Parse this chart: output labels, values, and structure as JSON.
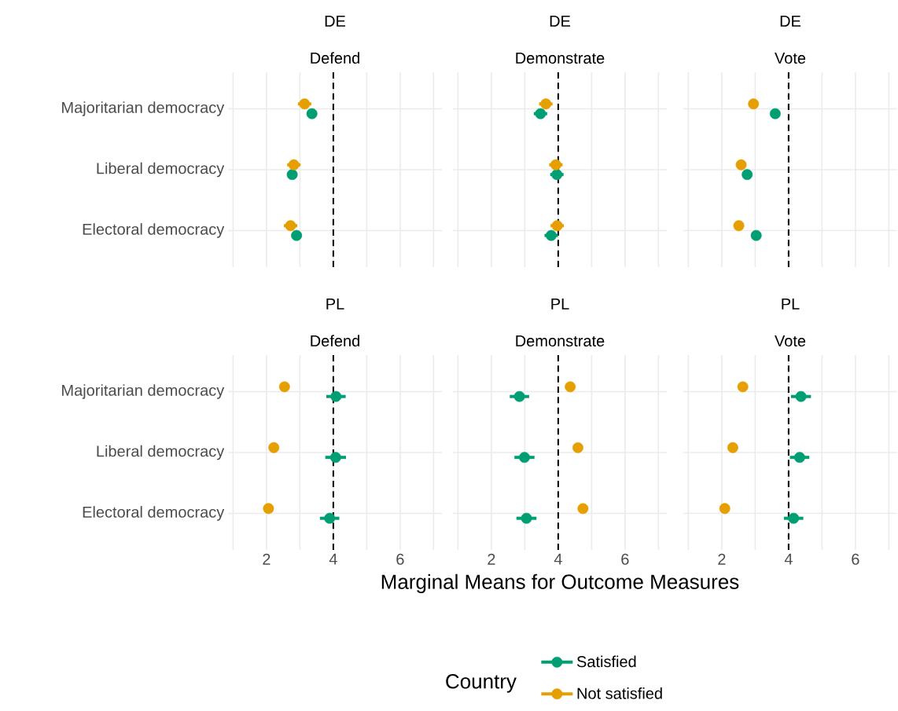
{
  "chart_data": [
    {
      "type": "scatter",
      "orientation": "horizontal",
      "title": "DE",
      "subtitle": "Defend",
      "categories": [
        "Majoritarian democracy",
        "Liberal democracy",
        "Electoral democracy"
      ],
      "series": [
        {
          "color": "#009e73",
          "values": [
            3.36,
            2.77,
            2.9
          ],
          "errors": [
            0.15,
            0.15,
            0.15
          ]
        },
        {
          "color": "#e69f00",
          "values": [
            3.14,
            2.82,
            2.72
          ],
          "errors": [
            0.2,
            0.2,
            0.2
          ]
        }
      ],
      "xlim": [
        0.85,
        7.25
      ],
      "xticks": [
        {
          "value": 1,
          "label": null
        },
        2,
        {
          "value": 3,
          "label": null
        },
        4,
        {
          "value": 5,
          "label": null
        },
        6,
        {
          "value": 7,
          "label": null
        }
      ],
      "ref_lines": [
        {
          "axis": "x",
          "value": 4,
          "line_style": "dashed",
          "color": "#000000"
        }
      ],
      "grid": true,
      "marker": "circle",
      "tick_labels": "y"
    },
    {
      "type": "scatter",
      "orientation": "horizontal",
      "title": "DE",
      "subtitle": "Demonstrate",
      "categories": [
        null,
        null,
        null
      ],
      "series": [
        {
          "color": "#009e73",
          "values": [
            3.47,
            3.96,
            3.79
          ],
          "errors": [
            0.2,
            0.2,
            0.2
          ]
        },
        {
          "color": "#e69f00",
          "values": [
            3.63,
            3.93,
            3.97
          ],
          "errors": [
            0.2,
            0.2,
            0.2
          ]
        }
      ],
      "xlim": [
        0.85,
        7.25
      ],
      "xticks": [
        {
          "value": 1,
          "label": null
        },
        2,
        {
          "value": 3,
          "label": null
        },
        4,
        {
          "value": 5,
          "label": null
        },
        6,
        {
          "value": 7,
          "label": null
        }
      ],
      "ref_lines": [
        {
          "axis": "x",
          "value": 4,
          "line_style": "dashed",
          "color": "#000000"
        }
      ],
      "grid": true,
      "marker": "circle",
      "tick_labels": false
    },
    {
      "type": "scatter",
      "orientation": "horizontal",
      "title": "DE",
      "subtitle": "Vote",
      "categories": [
        null,
        null,
        null
      ],
      "series": [
        {
          "color": "#009e73",
          "values": [
            3.6,
            2.76,
            3.03
          ]
        },
        {
          "color": "#e69f00",
          "values": [
            2.95,
            2.58,
            2.51
          ]
        }
      ],
      "xlim": [
        0.85,
        7.25
      ],
      "xticks": [
        {
          "value": 1,
          "label": null
        },
        2,
        {
          "value": 3,
          "label": null
        },
        4,
        {
          "value": 5,
          "label": null
        },
        6,
        {
          "value": 7,
          "label": null
        }
      ],
      "ref_lines": [
        {
          "axis": "x",
          "value": 4,
          "line_style": "dashed",
          "color": "#000000"
        }
      ],
      "grid": true,
      "marker": "circle",
      "tick_labels": false
    },
    {
      "type": "scatter",
      "orientation": "horizontal",
      "title": "PL",
      "subtitle": "Defend",
      "categories": [
        "Majoritarian democracy",
        "Liberal democracy",
        "Electoral democracy"
      ],
      "series": [
        {
          "color": "#009e73",
          "values": [
            4.08,
            4.07,
            3.89
          ],
          "errors": [
            0.29,
            0.31,
            0.29
          ]
        },
        {
          "color": "#e69f00",
          "values": [
            2.54,
            2.22,
            2.06
          ]
        }
      ],
      "xlim": [
        0.85,
        7.25
      ],
      "xticks": [
        {
          "value": 1,
          "label": null
        },
        2,
        {
          "value": 3,
          "label": null
        },
        4,
        {
          "value": 5,
          "label": null
        },
        6,
        {
          "value": 7,
          "label": null
        }
      ],
      "ref_lines": [
        {
          "axis": "x",
          "value": 4,
          "line_style": "dashed",
          "color": "#000000"
        }
      ],
      "grid": true,
      "marker": "circle"
    },
    {
      "type": "scatter",
      "orientation": "horizontal",
      "title": "PL",
      "subtitle": "Demonstrate",
      "xlabel": "Marginal Means for Outcome Measures",
      "legend_title": "Country",
      "legend": "bottom",
      "categories": [
        null,
        null,
        null
      ],
      "series": [
        {
          "name": "Satisfied",
          "color": "#009e73",
          "values": [
            2.84,
            2.99,
            3.05
          ],
          "errors": [
            0.29,
            0.3,
            0.3
          ]
        },
        {
          "name": "Not satisfied",
          "color": "#e69f00",
          "values": [
            4.36,
            4.59,
            4.74
          ]
        }
      ],
      "xlim": [
        0.85,
        7.25
      ],
      "xticks": [
        {
          "value": 1,
          "label": null
        },
        2,
        {
          "value": 3,
          "label": null
        },
        4,
        {
          "value": 5,
          "label": null
        },
        6,
        {
          "value": 7,
          "label": null
        }
      ],
      "ref_lines": [
        {
          "axis": "x",
          "value": 4,
          "line_style": "dashed",
          "color": "#000000"
        }
      ],
      "grid": true,
      "marker": "circle",
      "tick_labels": "x"
    },
    {
      "type": "scatter",
      "orientation": "horizontal",
      "title": "PL",
      "subtitle": "Vote",
      "categories": [
        null,
        null,
        null
      ],
      "series": [
        {
          "color": "#009e73",
          "values": [
            4.37,
            4.33,
            4.15
          ],
          "errors": [
            0.3,
            0.29,
            0.29
          ]
        },
        {
          "color": "#e69f00",
          "values": [
            2.63,
            2.33,
            2.09
          ]
        }
      ],
      "xlim": [
        0.85,
        7.25
      ],
      "xticks": [
        {
          "value": 1,
          "label": null
        },
        2,
        {
          "value": 3,
          "label": null
        },
        4,
        {
          "value": 5,
          "label": null
        },
        6,
        {
          "value": 7,
          "label": null
        }
      ],
      "ref_lines": [
        {
          "axis": "x",
          "value": 4,
          "line_style": "dashed",
          "color": "#000000"
        }
      ],
      "grid": true,
      "marker": "circle",
      "tick_labels": "x"
    }
  ]
}
